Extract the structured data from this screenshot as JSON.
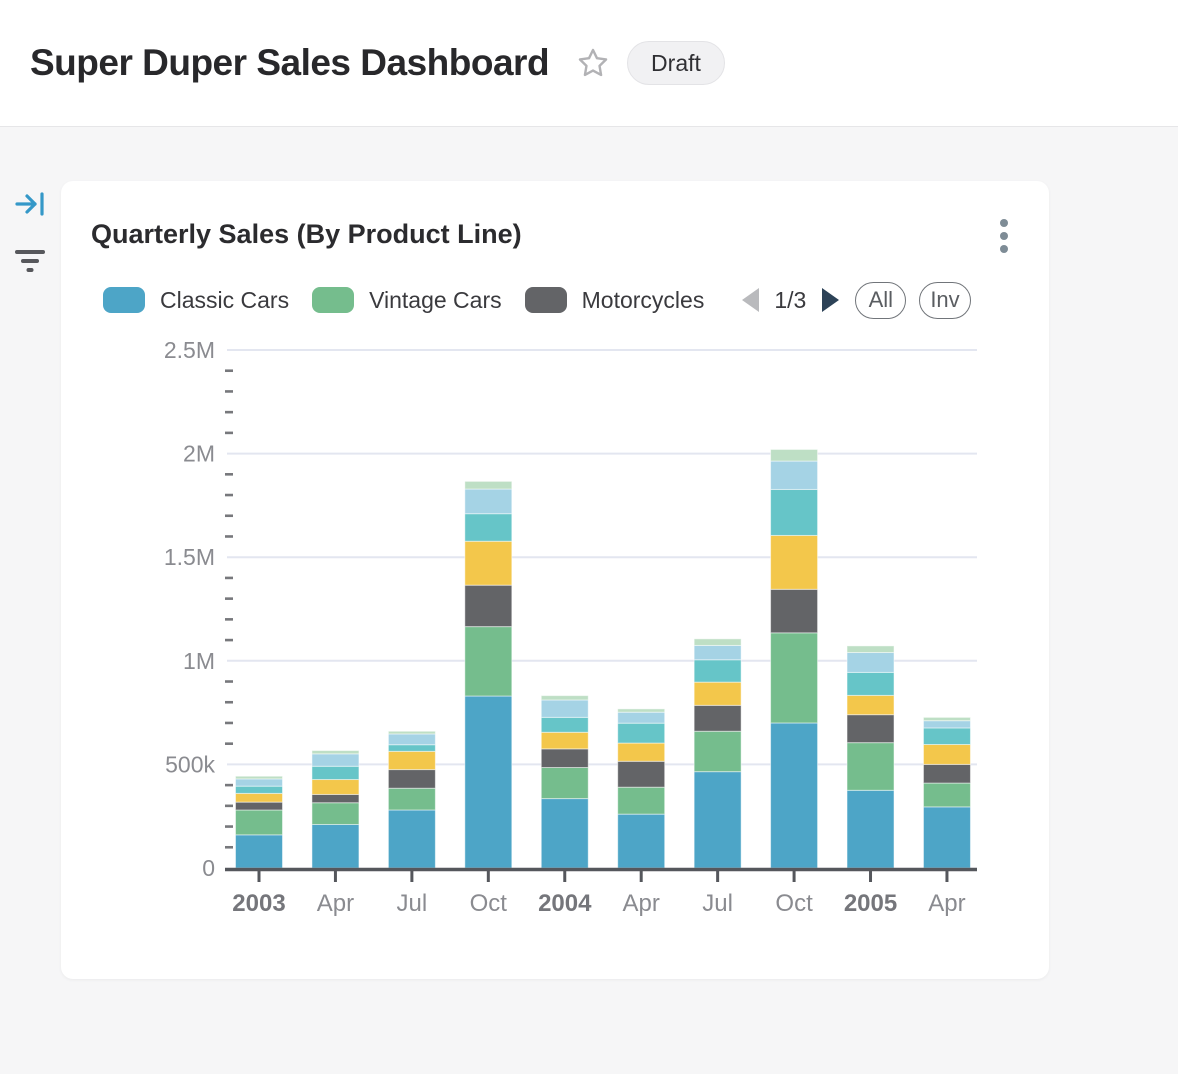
{
  "header": {
    "title": "Super Duper Sales Dashboard",
    "status_badge": "Draft",
    "icons": {
      "favorite": "star-outline"
    }
  },
  "rail": {
    "icons": {
      "collapse": "arrow-to-bar",
      "filter": "filter-funnel-lines"
    },
    "collapse_icon_color": "#3598c8",
    "filter_icon_color": "#57585c"
  },
  "card": {
    "title": "Quarterly Sales (By Product Line)",
    "menu_icon": "kebab-vertical-dots",
    "legend": {
      "items": [
        {
          "label": "Classic Cars",
          "color": "#4da5c7"
        },
        {
          "label": "Vintage Cars",
          "color": "#75bd8d"
        },
        {
          "label": "Motorcycles",
          "color": "#636467"
        }
      ],
      "page_indicator": "1/3",
      "prev_icon": "triangle-left",
      "prev_color": "#b9babd",
      "next_icon": "triangle-right",
      "next_color": "#2c4257"
    },
    "buttons": {
      "all_label": "All",
      "inv_label": "Inv"
    }
  },
  "chart_data": {
    "type": "bar",
    "stacked": true,
    "title": "Quarterly Sales (By Product Line)",
    "xlabel": "",
    "ylabel": "",
    "ylim": [
      0,
      2500000
    ],
    "ytick_values": [
      0,
      500000,
      1000000,
      1500000,
      2000000,
      2500000
    ],
    "ytick_labels": [
      "0",
      "500k",
      "1M",
      "1.5M",
      "2M",
      "2.5M"
    ],
    "minor_tick_step": 100000,
    "grid": true,
    "legend_position": "top",
    "categories": [
      "2003",
      "Apr",
      "Jul",
      "Oct",
      "2004",
      "Apr",
      "Jul",
      "Oct",
      "2005",
      "Apr"
    ],
    "series": [
      {
        "name": "Classic Cars",
        "color": "#4da5c7",
        "values": [
          160000,
          210000,
          280000,
          830000,
          335000,
          260000,
          465000,
          700000,
          375000,
          295000
        ]
      },
      {
        "name": "Vintage Cars",
        "color": "#75bd8d",
        "values": [
          120000,
          105000,
          105000,
          335000,
          150000,
          130000,
          195000,
          435000,
          230000,
          115000
        ]
      },
      {
        "name": "Motorcycles",
        "color": "#636467",
        "values": [
          38000,
          40000,
          90000,
          200000,
          90000,
          125000,
          125000,
          210000,
          135000,
          90000
        ]
      },
      {
        "name": "",
        "color": "#f3c74b",
        "values": [
          42000,
          72000,
          88000,
          212000,
          80000,
          88000,
          112000,
          260000,
          93000,
          96000
        ]
      },
      {
        "name": "",
        "color": "#66c5c8",
        "values": [
          35000,
          64000,
          32000,
          133000,
          72000,
          96000,
          108000,
          222000,
          111000,
          80000
        ]
      },
      {
        "name": "",
        "color": "#a5d3e5",
        "values": [
          35000,
          60000,
          52000,
          119000,
          84000,
          53000,
          69000,
          137000,
          96000,
          35000
        ]
      },
      {
        "name": "",
        "color": "#bedfc5",
        "values": [
          13000,
          16000,
          13000,
          37000,
          21000,
          16000,
          32000,
          56000,
          32000,
          16000
        ]
      }
    ],
    "colors": {
      "gridline": "#e3e6f0",
      "axis": "#55575c",
      "minor_tick": "#77787c",
      "tick_label": "#8a8b90",
      "year_label": "#75767b"
    }
  }
}
